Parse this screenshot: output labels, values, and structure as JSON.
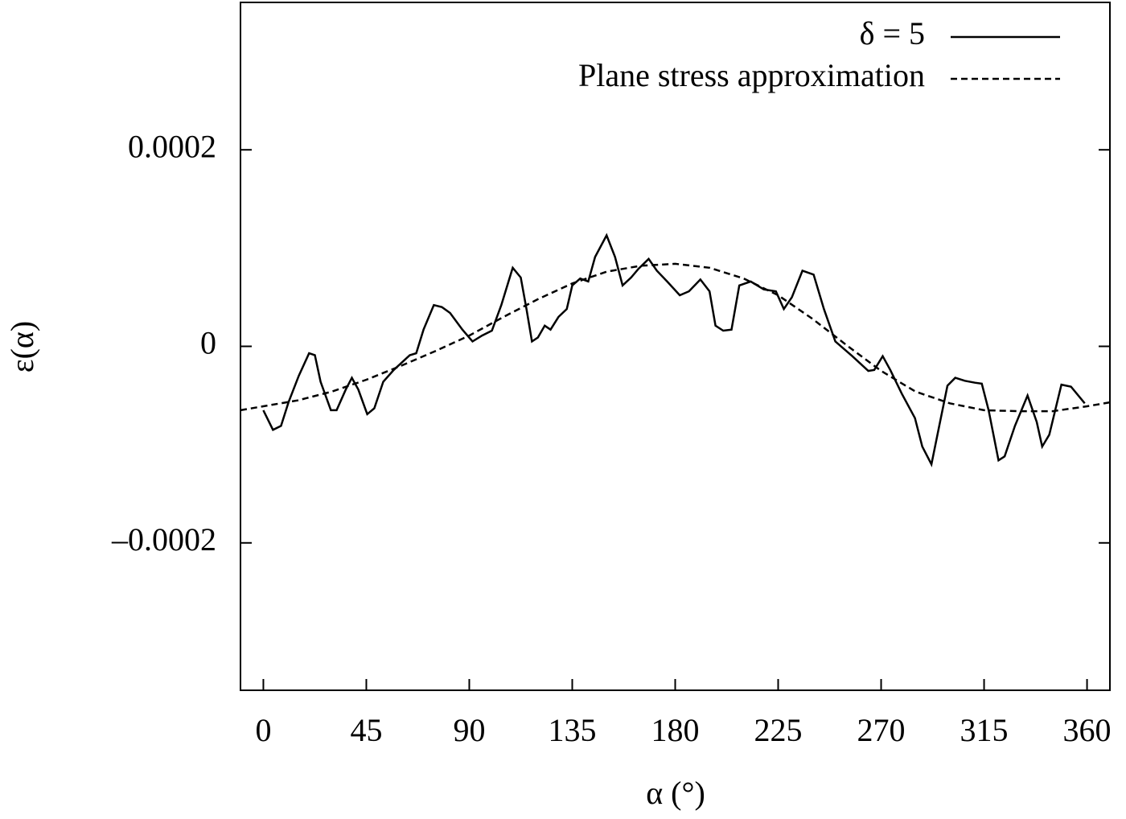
{
  "chart_data": {
    "type": "line",
    "x_label": "α (°)",
    "y_label": "ε(α)",
    "xlim": [
      -10,
      370
    ],
    "xticks": [
      0,
      45,
      90,
      135,
      180,
      225,
      270,
      315,
      360
    ],
    "ylim": [
      -0.00035,
      0.00035
    ],
    "yticks": [
      {
        "value": -0.0002,
        "label": "–0.0002"
      },
      0,
      0.0002
    ],
    "legend": "upper right",
    "series": [
      {
        "name": "δ = 5",
        "color": "#000000",
        "dash": "solid",
        "x": [
          0,
          4.2,
          7.7,
          11,
          15.5,
          20,
          22.5,
          25,
          29.5,
          32,
          36,
          38.7,
          41.5,
          45.4,
          48.5,
          52.4,
          57,
          64,
          66.8,
          70,
          74.5,
          78,
          81.6,
          87,
          91.4,
          95.6,
          99.9,
          104,
          109,
          112.5,
          115,
          117.4,
          120,
          123,
          125.5,
          129,
          132.6,
          135,
          138.5,
          142,
          145,
          150,
          153.7,
          157,
          160.7,
          164,
          168.4,
          172,
          176.5,
          182,
          186,
          191,
          195,
          197.6,
          201,
          204.6,
          208,
          213,
          218.7,
          224,
          227.5,
          231,
          235.6,
          240.5,
          245,
          250,
          257.4,
          264.4,
          267,
          270.7,
          274,
          279,
          284.8,
          288,
          292,
          295.4,
          299,
          302.4,
          306.6,
          311,
          314,
          317,
          321.3,
          324,
          328.5,
          334,
          338,
          340.4,
          343.5,
          348.8,
          353,
          359
        ],
        "values": [
          -6.5e-05,
          -8.5e-05,
          -8.1e-05,
          -5.7e-05,
          -3e-05,
          -7e-06,
          -9e-06,
          -3.6e-05,
          -6.5e-05,
          -6.5e-05,
          -4.4e-05,
          -3.2e-05,
          -4.4e-05,
          -6.9e-05,
          -6.3e-05,
          -3.6e-05,
          -2.4e-05,
          -9e-06,
          -7e-06,
          1.7e-05,
          4.2e-05,
          4e-05,
          3.4e-05,
          1.7e-05,
          5e-06,
          1.1e-05,
          1.6e-05,
          4.2e-05,
          8e-05,
          7e-05,
          3.8e-05,
          5e-06,
          9e-06,
          2.1e-05,
          1.7e-05,
          3e-05,
          3.8e-05,
          6.2e-05,
          6.9e-05,
          6.6e-05,
          9.1e-05,
          0.000113,
          9.1e-05,
          6.2e-05,
          7e-05,
          7.9e-05,
          8.9e-05,
          7.7e-05,
          6.6e-05,
          5.2e-05,
          5.6e-05,
          6.8e-05,
          5.6e-05,
          2.1e-05,
          1.6e-05,
          1.7e-05,
          6.2e-05,
          6.6e-05,
          5.8e-05,
          5.6e-05,
          3.8e-05,
          5e-05,
          7.7e-05,
          7.3e-05,
          3.8e-05,
          5e-06,
          -1e-05,
          -2.5e-05,
          -2.4e-05,
          -1e-05,
          -2.4e-05,
          -4.8e-05,
          -7.3e-05,
          -0.000102,
          -0.00012,
          -8.1e-05,
          -4e-05,
          -3.2e-05,
          -3.5e-05,
          -3.7e-05,
          -3.8e-05,
          -6.5e-05,
          -0.000116,
          -0.000112,
          -8.1e-05,
          -5e-05,
          -7.7e-05,
          -0.000102,
          -9e-05,
          -3.9e-05,
          -4.1e-05,
          -5.8e-05
        ]
      },
      {
        "name": "Plane stress approximation",
        "color": "#000000",
        "dash": "dashed",
        "x": [
          -10,
          0,
          15,
          30,
          45,
          60,
          75,
          90,
          105,
          120,
          135,
          150,
          165,
          180,
          195,
          210,
          225,
          240,
          255,
          270,
          285,
          300,
          315,
          330,
          345,
          360,
          370
        ],
        "values": [
          -6.5e-05,
          -6.1e-05,
          -5.5e-05,
          -4.6e-05,
          -3.4e-05,
          -2e-05,
          -5e-06,
          1.1e-05,
          3e-05,
          4.8e-05,
          6.4e-05,
          7.6e-05,
          8.2e-05,
          8.4e-05,
          8e-05,
          6.9e-05,
          5.2e-05,
          2.8e-05,
          1e-06,
          -2.5e-05,
          -4.6e-05,
          -5.8e-05,
          -6.5e-05,
          -6.6e-05,
          -6.6e-05,
          -6.1e-05,
          -5.7e-05
        ]
      }
    ]
  }
}
